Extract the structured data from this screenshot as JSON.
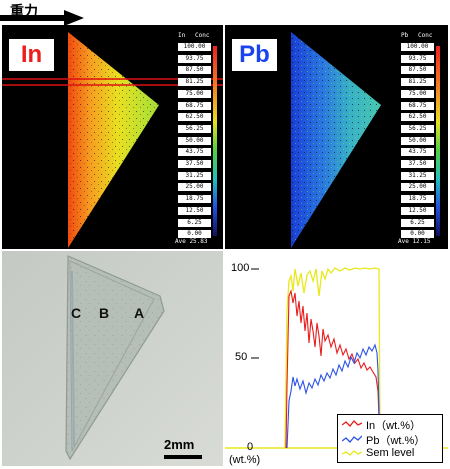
{
  "header": {
    "gravity_label": "重力"
  },
  "map_in": {
    "element": "In",
    "scale_header": [
      "In",
      "Conc"
    ],
    "scale_values": [
      "100.00",
      "93.75",
      "87.50",
      "81.25",
      "75.00",
      "68.75",
      "62.50",
      "56.25",
      "50.00",
      "43.75",
      "37.50",
      "31.25",
      "25.00",
      "18.75",
      "12.50",
      "6.25",
      "0.00"
    ],
    "footer": "Ave 25.83"
  },
  "map_pb": {
    "element": "Pb",
    "scale_header": [
      "Pb",
      "Conc"
    ],
    "scale_values": [
      "100.00",
      "93.75",
      "87.50",
      "81.25",
      "75.00",
      "68.75",
      "62.50",
      "56.25",
      "50.00",
      "43.75",
      "37.50",
      "31.25",
      "25.00",
      "18.75",
      "12.50",
      "6.25",
      "0.00"
    ],
    "footer": "Ave 12.15"
  },
  "photo": {
    "labels": [
      "C",
      "B",
      "A"
    ],
    "scale_label": "2mm"
  },
  "chart": {
    "y_ticks": [
      "100",
      "50",
      "0"
    ],
    "y_unit": "(wt.%)",
    "legend": [
      {
        "label": "In（wt.%）",
        "color": "#e81c1c"
      },
      {
        "label": "Pb（wt.%）",
        "color": "#2a52e8"
      },
      {
        "label": "Sem level",
        "color": "#e8e81c"
      }
    ]
  }
}
